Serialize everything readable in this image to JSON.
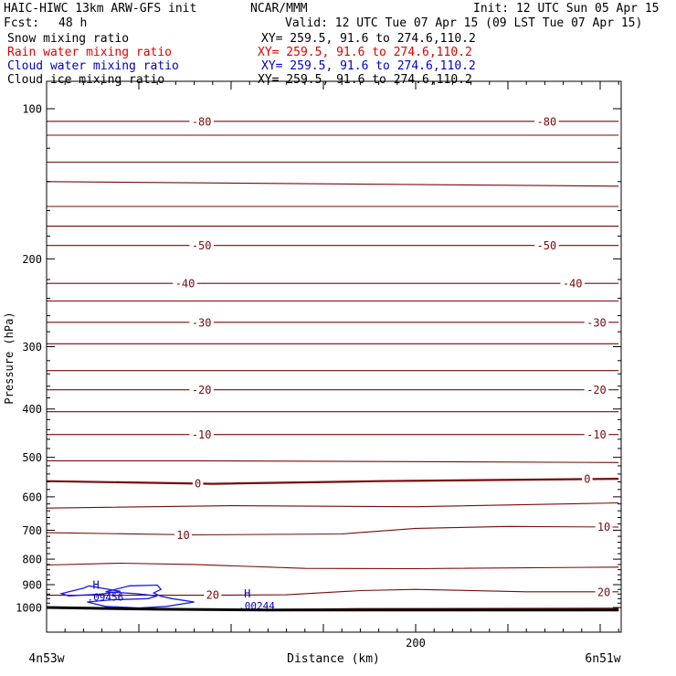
{
  "header": {
    "model": "HAIC-HIWC 13km ARW-GFS init",
    "org": "NCAR/MMM",
    "init": "Init: 12 UTC Sun 05 Apr 15",
    "fcst_label": "Fcst:",
    "fcst_value": "48 h",
    "valid": "Valid: 12 UTC Tue 07 Apr 15 (09 LST Tue 07 Apr 15)"
  },
  "legend": [
    {
      "name": "Snow mixing ratio",
      "xy": "XY= 259.5, 91.6 to 274.6,110.2",
      "color": "#000000"
    },
    {
      "name": "Rain water mixing ratio",
      "xy": "XY= 259.5, 91.6 to 274.6,110.2",
      "color": "#e00000"
    },
    {
      "name": "Cloud water mixing ratio",
      "xy": "XY= 259.5, 91.6 to 274.6,110.2",
      "color": "#0000cc"
    },
    {
      "name": "Cloud ice mixing ratio",
      "xy": "XY= 259.5, 91.6 to 274.6,110.2",
      "color": "#000000"
    }
  ],
  "chart_data": {
    "type": "line",
    "xlabel": "Distance (km)",
    "ylabel": "Pressure (hPa)",
    "xlim": [
      0,
      310
    ],
    "ylim": [
      1015,
      60
    ],
    "y_scale": "log",
    "x_ticks": [
      200
    ],
    "y_ticks": [
      100,
      200,
      300,
      400,
      500,
      600,
      700,
      800,
      900,
      1000
    ],
    "x_left_label": "4n53w",
    "x_right_label": "6n51w",
    "grid": false,
    "isotherm_color": "#7a0a0a",
    "cloud_color": "#1a1ae6",
    "isotherms": [
      {
        "label": "-80",
        "points": [
          [
            0,
            106
          ],
          [
            310,
            106
          ]
        ],
        "labels_at": [
          [
            84,
            106
          ],
          [
            271,
            106
          ]
        ]
      },
      {
        "label": "",
        "points": [
          [
            0,
            113
          ],
          [
            310,
            113
          ]
        ],
        "labels_at": []
      },
      {
        "label": "",
        "points": [
          [
            0,
            128
          ],
          [
            310,
            128
          ]
        ],
        "labels_at": []
      },
      {
        "label": "",
        "points": [
          [
            0,
            140
          ],
          [
            310,
            143
          ]
        ],
        "labels_at": []
      },
      {
        "label": "",
        "points": [
          [
            0,
            157
          ],
          [
            310,
            157
          ]
        ],
        "labels_at": []
      },
      {
        "label": "",
        "points": [
          [
            0,
            172
          ],
          [
            310,
            172
          ]
        ],
        "labels_at": []
      },
      {
        "label": "-50",
        "points": [
          [
            0,
            188
          ],
          [
            310,
            188
          ]
        ],
        "labels_at": [
          [
            84,
            188
          ],
          [
            271,
            188
          ]
        ]
      },
      {
        "label": "-40",
        "points": [
          [
            0,
            224
          ],
          [
            310,
            224
          ]
        ],
        "labels_at": [
          [
            75,
            224
          ],
          [
            285,
            224
          ]
        ]
      },
      {
        "label": "",
        "points": [
          [
            0,
            243
          ],
          [
            310,
            243
          ]
        ],
        "labels_at": []
      },
      {
        "label": "-30",
        "points": [
          [
            0,
            268
          ],
          [
            310,
            268
          ]
        ],
        "labels_at": [
          [
            84,
            268
          ],
          [
            298,
            268
          ]
        ]
      },
      {
        "label": "",
        "points": [
          [
            0,
            296
          ],
          [
            310,
            296
          ]
        ],
        "labels_at": []
      },
      {
        "label": "",
        "points": [
          [
            0,
            335
          ],
          [
            310,
            335
          ]
        ],
        "labels_at": []
      },
      {
        "label": "-20",
        "points": [
          [
            0,
            366
          ],
          [
            310,
            366
          ]
        ],
        "labels_at": [
          [
            84,
            366
          ],
          [
            298,
            366
          ]
        ]
      },
      {
        "label": "",
        "points": [
          [
            0,
            405
          ],
          [
            310,
            405
          ]
        ],
        "labels_at": []
      },
      {
        "label": "-10",
        "points": [
          [
            0,
            450
          ],
          [
            310,
            450
          ]
        ],
        "labels_at": [
          [
            84,
            450
          ],
          [
            298,
            450
          ]
        ]
      },
      {
        "label": "",
        "points": [
          [
            0,
            508
          ],
          [
            80,
            508
          ],
          [
            310,
            512
          ]
        ],
        "labels_at": []
      },
      {
        "label": "0",
        "points": [
          [
            0,
            558
          ],
          [
            90,
            565
          ],
          [
            180,
            558
          ],
          [
            310,
            552
          ]
        ],
        "labels_at": [
          [
            82,
            563
          ],
          [
            293,
            552
          ]
        ]
      },
      {
        "label": "",
        "points": [
          [
            0,
            632
          ],
          [
            100,
            625
          ],
          [
            200,
            628
          ],
          [
            310,
            617
          ]
        ],
        "labels_at": []
      },
      {
        "label": "10",
        "points": [
          [
            0,
            708
          ],
          [
            80,
            715
          ],
          [
            160,
            712
          ],
          [
            200,
            694
          ],
          [
            250,
            688
          ],
          [
            310,
            690
          ]
        ],
        "labels_at": [
          [
            74,
            715
          ],
          [
            302,
            688
          ]
        ]
      },
      {
        "label": "",
        "points": [
          [
            0,
            822
          ],
          [
            40,
            815
          ],
          [
            80,
            820
          ],
          [
            140,
            835
          ],
          [
            200,
            836
          ],
          [
            310,
            830
          ]
        ],
        "labels_at": []
      },
      {
        "label": "20",
        "points": [
          [
            0,
            945
          ],
          [
            80,
            945
          ],
          [
            130,
            943
          ],
          [
            170,
            925
          ],
          [
            200,
            920
          ],
          [
            260,
            930
          ],
          [
            310,
            930
          ]
        ],
        "labels_at": [
          [
            90,
            943
          ],
          [
            302,
            930
          ]
        ]
      },
      {
        "label": "",
        "points": [
          [
            0,
            1003
          ],
          [
            100,
            1010
          ],
          [
            170,
            1005
          ],
          [
            310,
            1003
          ]
        ],
        "labels_at": []
      }
    ],
    "surface": {
      "points": [
        [
          0,
          1000
        ],
        [
          60,
          1008
        ],
        [
          120,
          1012
        ],
        [
          310,
          1012
        ]
      ]
    },
    "cloud_water": [
      {
        "points": [
          [
            20,
            915
          ],
          [
            23,
            905
          ],
          [
            30,
            915
          ],
          [
            40,
            928
          ],
          [
            30,
            940
          ],
          [
            12,
            948
          ],
          [
            8,
            938
          ],
          [
            20,
            915
          ]
        ]
      },
      {
        "points": [
          [
            32,
            930
          ],
          [
            45,
            905
          ],
          [
            60,
            902
          ],
          [
            62,
            920
          ],
          [
            58,
            935
          ],
          [
            62,
            950
          ],
          [
            68,
            960
          ],
          [
            80,
            975
          ],
          [
            65,
            995
          ],
          [
            50,
            1002
          ],
          [
            32,
            995
          ],
          [
            22,
            975
          ],
          [
            35,
            965
          ],
          [
            55,
            960
          ],
          [
            60,
            948
          ],
          [
            48,
            938
          ],
          [
            32,
            930
          ]
        ]
      }
    ],
    "extrema": [
      {
        "type": "H",
        "label": "H",
        "value": ".09456",
        "x": 24,
        "p": 918
      },
      {
        "type": "H",
        "label": "H",
        "value": ".00244",
        "x": 106,
        "p": 955
      }
    ]
  }
}
